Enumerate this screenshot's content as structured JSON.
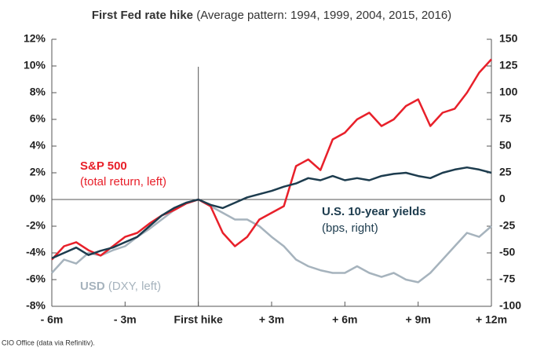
{
  "chart_data": {
    "type": "line",
    "title": "First Fed rate hike",
    "subtitle": "(Average pattern: 1994, 1999, 2004, 2015, 2016)",
    "source": "CIO Office (data via Refinitiv).",
    "annotations": [
      "(total return, left)",
      "(bps, right)",
      "(DXY, left)"
    ],
    "x": [
      -6,
      -5.5,
      -5,
      -4.5,
      -4,
      -3.5,
      -3,
      -2.5,
      -2,
      -1.5,
      -1,
      -0.5,
      0,
      0.5,
      1,
      1.5,
      2,
      2.5,
      3,
      3.5,
      4,
      4.5,
      5,
      5.5,
      6,
      6.5,
      7,
      7.5,
      8,
      8.5,
      9,
      9.5,
      10,
      10.5,
      11,
      11.5,
      12
    ],
    "xlim": [
      -6,
      12
    ],
    "xticks": [
      {
        "value": -6,
        "label": "- 6m"
      },
      {
        "value": -3,
        "label": "- 3m"
      },
      {
        "value": 0,
        "label": "First hike"
      },
      {
        "value": 3,
        "label": "+ 3m"
      },
      {
        "value": 6,
        "label": "+ 6m"
      },
      {
        "value": 9,
        "label": "+ 9m"
      },
      {
        "value": 12,
        "label": "+ 12m"
      }
    ],
    "ylim": [
      -8,
      12
    ],
    "yticks": [
      {
        "value": -8,
        "label": "-8%"
      },
      {
        "value": -6,
        "label": "-6%"
      },
      {
        "value": -4,
        "label": "-4%"
      },
      {
        "value": -2,
        "label": "-2%"
      },
      {
        "value": 0,
        "label": "0%"
      },
      {
        "value": 2,
        "label": "2%"
      },
      {
        "value": 4,
        "label": "4%"
      },
      {
        "value": 6,
        "label": "6%"
      },
      {
        "value": 8,
        "label": "8%"
      },
      {
        "value": 10,
        "label": "10%"
      },
      {
        "value": 12,
        "label": "12%"
      }
    ],
    "y2lim": [
      -100,
      150
    ],
    "y2ticks": [
      -100,
      -75,
      -50,
      -25,
      0,
      25,
      50,
      75,
      100,
      125,
      150
    ],
    "series": [
      {
        "name": "USD",
        "color": "#a6b3bd",
        "axis": "y",
        "values": [
          -5.5,
          -4.5,
          -4.8,
          -4.0,
          -4.2,
          -3.8,
          -3.5,
          -2.8,
          -2.2,
          -1.5,
          -0.8,
          -0.3,
          0,
          -0.5,
          -1.0,
          -1.5,
          -1.5,
          -2.0,
          -2.8,
          -3.5,
          -4.5,
          -5.0,
          -5.3,
          -5.5,
          -5.5,
          -5.0,
          -5.5,
          -5.8,
          -5.5,
          -6.0,
          -6.2,
          -5.5,
          -4.5,
          -3.5,
          -2.5,
          -2.8,
          -2.0
        ]
      },
      {
        "name": "S&P 500",
        "color": "#e8202a",
        "axis": "y",
        "values": [
          -4.5,
          -3.5,
          -3.2,
          -3.8,
          -4.2,
          -3.5,
          -2.8,
          -2.5,
          -1.8,
          -1.2,
          -0.8,
          -0.3,
          0,
          -0.5,
          -2.5,
          -3.5,
          -2.8,
          -1.5,
          -1.0,
          -0.5,
          2.5,
          3.0,
          2.2,
          4.5,
          5.0,
          6.0,
          6.5,
          5.5,
          6.0,
          7.0,
          7.5,
          5.5,
          6.5,
          6.8,
          8.0,
          9.5,
          10.5
        ]
      },
      {
        "name": "U.S. 10-year yields",
        "color": "#1d3c4e",
        "axis": "y2",
        "values": [
          -55,
          -50,
          -45,
          -52,
          -48,
          -45,
          -40,
          -35,
          -25,
          -15,
          -8,
          -3,
          0,
          -5,
          -8,
          -3,
          2,
          5,
          8,
          12,
          15,
          20,
          18,
          22,
          18,
          20,
          18,
          22,
          24,
          25,
          22,
          20,
          25,
          28,
          30,
          28,
          25
        ]
      }
    ]
  }
}
